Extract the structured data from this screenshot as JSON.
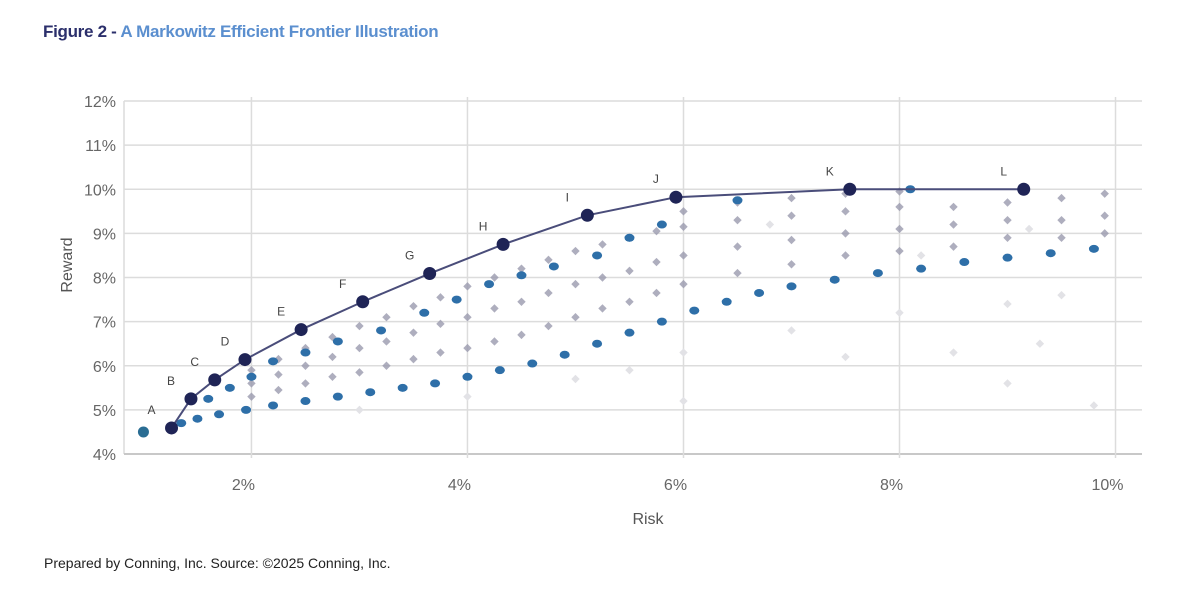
{
  "title": {
    "prefix": "Figure 2 - ",
    "main": "A Markowitz Efficient Frontier Illustration"
  },
  "footer": "Prepared by Conning, Inc. Source: ©2025 Conning, Inc.",
  "colors": {
    "title_prefix": "#2b2f6b",
    "title_main": "#5b8fcf",
    "frontier": "#1f2456",
    "highlight": "#2e6fa8",
    "portfolio": "#9a9aae",
    "faint": "#e2e2e6",
    "grid": "#dcdcdc"
  },
  "chart_data": {
    "type": "scatter",
    "title": "A Markowitz Efficient Frontier Illustration",
    "xlabel": "Risk",
    "ylabel": "Reward",
    "xlim": [
      0.82,
      10.06
    ],
    "ylim": [
      4,
      12
    ],
    "xticks": [
      2,
      4,
      6,
      8,
      10
    ],
    "xtick_labels": [
      "2%",
      "4%",
      "6%",
      "8%",
      "10%"
    ],
    "yticks": [
      4,
      5,
      6,
      7,
      8,
      9,
      10,
      11,
      12
    ],
    "ytick_labels": [
      "4%",
      "5%",
      "6%",
      "7%",
      "8%",
      "9%",
      "10%",
      "11%",
      "12%"
    ],
    "grid": true,
    "frontier": {
      "name": "Efficient Frontier",
      "points": [
        {
          "label": "A",
          "x": 1.26,
          "y": 4.59
        },
        {
          "label": "B",
          "x": 1.44,
          "y": 5.25
        },
        {
          "label": "C",
          "x": 1.66,
          "y": 5.68
        },
        {
          "label": "D",
          "x": 1.94,
          "y": 6.14
        },
        {
          "label": "E",
          "x": 2.46,
          "y": 6.82
        },
        {
          "label": "F",
          "x": 3.03,
          "y": 7.45
        },
        {
          "label": "G",
          "x": 3.65,
          "y": 8.09
        },
        {
          "label": "H",
          "x": 4.33,
          "y": 8.75
        },
        {
          "label": "I",
          "x": 5.11,
          "y": 9.41
        },
        {
          "label": "J",
          "x": 5.93,
          "y": 9.82
        },
        {
          "label": "K",
          "x": 7.54,
          "y": 10.0
        },
        {
          "label": "L",
          "x": 9.15,
          "y": 10.0
        }
      ]
    },
    "single_asset": {
      "x": 1.0,
      "y": 4.5
    },
    "highlight_series": [
      [
        1.35,
        4.7
      ],
      [
        1.5,
        4.8
      ],
      [
        1.7,
        4.9
      ],
      [
        1.95,
        5.0
      ],
      [
        2.2,
        5.1
      ],
      [
        2.5,
        5.2
      ],
      [
        2.8,
        5.3
      ],
      [
        3.1,
        5.4
      ],
      [
        3.4,
        5.5
      ],
      [
        3.7,
        5.6
      ],
      [
        4.0,
        5.75
      ],
      [
        4.3,
        5.9
      ],
      [
        4.6,
        6.05
      ],
      [
        4.9,
        6.25
      ],
      [
        5.2,
        6.5
      ],
      [
        5.5,
        6.75
      ],
      [
        5.8,
        7.0
      ],
      [
        6.1,
        7.25
      ],
      [
        6.4,
        7.45
      ],
      [
        6.7,
        7.65
      ],
      [
        7.0,
        7.8
      ],
      [
        7.4,
        7.95
      ],
      [
        7.8,
        8.1
      ],
      [
        8.2,
        8.2
      ],
      [
        8.6,
        8.35
      ],
      [
        9.0,
        8.45
      ],
      [
        9.4,
        8.55
      ],
      [
        9.8,
        8.65
      ],
      [
        1.6,
        5.25
      ],
      [
        1.8,
        5.5
      ],
      [
        2.0,
        5.75
      ],
      [
        2.2,
        6.1
      ],
      [
        2.5,
        6.3
      ],
      [
        2.8,
        6.55
      ],
      [
        3.2,
        6.8
      ],
      [
        3.6,
        7.2
      ],
      [
        3.9,
        7.5
      ],
      [
        4.2,
        7.85
      ],
      [
        4.5,
        8.05
      ],
      [
        4.8,
        8.25
      ],
      [
        5.2,
        8.5
      ],
      [
        5.5,
        8.9
      ],
      [
        5.8,
        9.2
      ],
      [
        6.5,
        9.75
      ],
      [
        8.1,
        10.0
      ]
    ],
    "portfolio_series": [
      [
        2,
        5.3
      ],
      [
        2,
        5.6
      ],
      [
        2,
        5.9
      ],
      [
        2.25,
        5.45
      ],
      [
        2.25,
        5.8
      ],
      [
        2.25,
        6.15
      ],
      [
        2.5,
        5.6
      ],
      [
        2.5,
        6.0
      ],
      [
        2.5,
        6.4
      ],
      [
        2.75,
        5.75
      ],
      [
        2.75,
        6.2
      ],
      [
        2.75,
        6.65
      ],
      [
        3,
        5.85
      ],
      [
        3,
        6.4
      ],
      [
        3,
        6.9
      ],
      [
        3.25,
        6.0
      ],
      [
        3.25,
        6.55
      ],
      [
        3.25,
        7.1
      ],
      [
        3.5,
        6.15
      ],
      [
        3.5,
        6.75
      ],
      [
        3.5,
        7.35
      ],
      [
        3.75,
        6.3
      ],
      [
        3.75,
        6.95
      ],
      [
        3.75,
        7.55
      ],
      [
        4,
        6.4
      ],
      [
        4,
        7.1
      ],
      [
        4,
        7.8
      ],
      [
        4.25,
        6.55
      ],
      [
        4.25,
        7.3
      ],
      [
        4.25,
        8.0
      ],
      [
        4.5,
        6.7
      ],
      [
        4.5,
        7.45
      ],
      [
        4.5,
        8.2
      ],
      [
        4.75,
        6.9
      ],
      [
        4.75,
        7.65
      ],
      [
        4.75,
        8.4
      ],
      [
        5,
        7.1
      ],
      [
        5,
        7.85
      ],
      [
        5,
        8.6
      ],
      [
        5.25,
        7.3
      ],
      [
        5.25,
        8.0
      ],
      [
        5.25,
        8.75
      ],
      [
        5.5,
        7.45
      ],
      [
        5.5,
        8.15
      ],
      [
        5.5,
        8.9
      ],
      [
        5.75,
        7.65
      ],
      [
        5.75,
        8.35
      ],
      [
        5.75,
        9.05
      ],
      [
        6,
        7.85
      ],
      [
        6,
        8.5
      ],
      [
        6,
        9.15
      ],
      [
        6,
        9.5
      ],
      [
        6.5,
        8.1
      ],
      [
        6.5,
        8.7
      ],
      [
        6.5,
        9.3
      ],
      [
        6.5,
        9.7
      ],
      [
        7,
        8.3
      ],
      [
        7,
        8.85
      ],
      [
        7,
        9.4
      ],
      [
        7,
        9.8
      ],
      [
        7.5,
        8.5
      ],
      [
        7.5,
        9.0
      ],
      [
        7.5,
        9.5
      ],
      [
        7.5,
        9.9
      ],
      [
        8,
        8.6
      ],
      [
        8,
        9.1
      ],
      [
        8,
        9.6
      ],
      [
        8,
        9.95
      ],
      [
        8.5,
        8.7
      ],
      [
        8.5,
        9.2
      ],
      [
        8.5,
        9.6
      ],
      [
        9,
        8.9
      ],
      [
        9,
        9.3
      ],
      [
        9,
        9.7
      ],
      [
        9.5,
        8.9
      ],
      [
        9.5,
        9.3
      ],
      [
        9.5,
        9.8
      ],
      [
        9.9,
        9.0
      ],
      [
        9.9,
        9.4
      ],
      [
        9.9,
        9.9
      ]
    ],
    "faint_series": [
      [
        3,
        5.0
      ],
      [
        4,
        5.3
      ],
      [
        5,
        5.7
      ],
      [
        5.5,
        5.9
      ],
      [
        6,
        6.3
      ],
      [
        6,
        5.2
      ],
      [
        7,
        6.8
      ],
      [
        7.5,
        6.2
      ],
      [
        8,
        7.2
      ],
      [
        8.5,
        6.3
      ],
      [
        9,
        7.4
      ],
      [
        9,
        5.6
      ],
      [
        9.3,
        6.5
      ],
      [
        9.5,
        7.6
      ],
      [
        9.8,
        5.1
      ],
      [
        8.2,
        8.5
      ],
      [
        9.2,
        9.1
      ],
      [
        6.8,
        9.2
      ]
    ]
  }
}
